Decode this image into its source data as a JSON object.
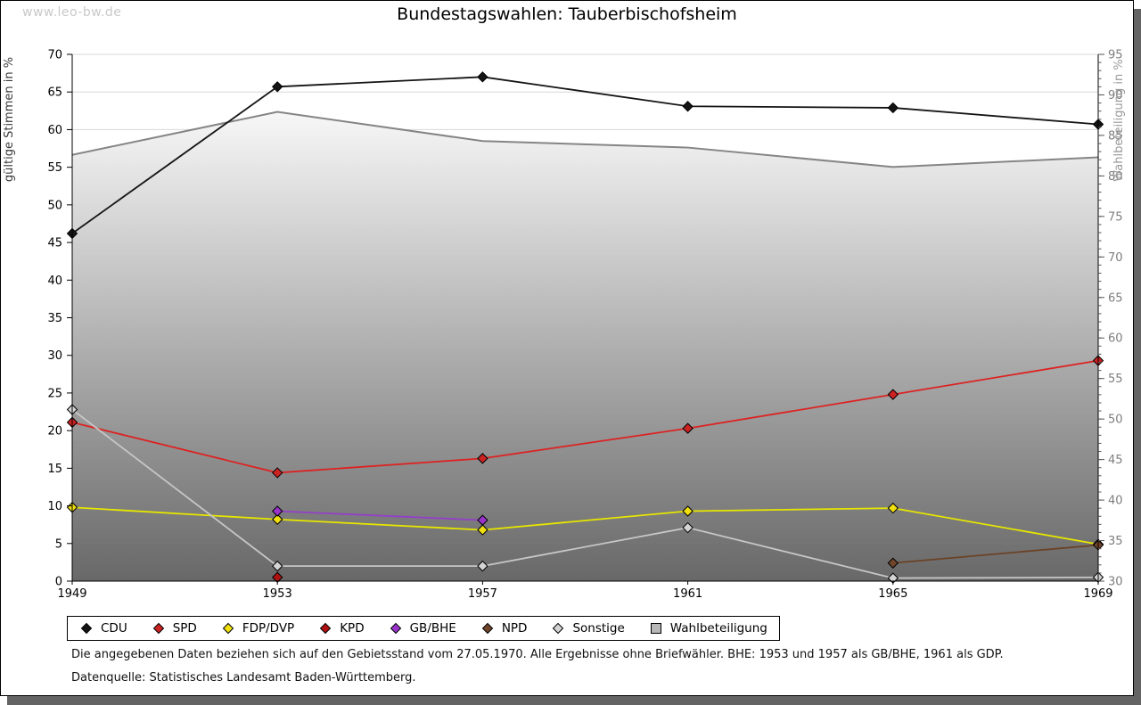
{
  "watermark": "www.leo-bw.de",
  "title": "Bundestagswahlen: Tauberbischofsheim",
  "footnotes": [
    "Die angegebenen Daten beziehen sich auf den Gebietsstand vom 27.05.1970. Alle Ergebnisse ohne Briefwähler. BHE: 1953 und 1957 als GB/BHE, 1961 als GDP.",
    "Datenquelle: Statistisches Landesamt Baden-Württemberg."
  ],
  "chart_data": {
    "type": "line",
    "x": [
      1949,
      1953,
      1957,
      1961,
      1965,
      1969
    ],
    "left_axis": {
      "label": "gültige Stimmen in %",
      "min": 0,
      "max": 70,
      "ticks": [
        0,
        5,
        10,
        15,
        20,
        25,
        30,
        35,
        40,
        45,
        50,
        55,
        60,
        65,
        70
      ]
    },
    "right_axis": {
      "label": "Wahlbeteiligung in %",
      "min": 30,
      "max": 95,
      "ticks": [
        30,
        35,
        40,
        45,
        50,
        55,
        60,
        65,
        70,
        75,
        80,
        85,
        90,
        95
      ],
      "minor_tick_step": 1
    },
    "grid": "horizontal",
    "legend_position": "bottom",
    "series": [
      {
        "name": "CDU",
        "axis": "left",
        "marker": "diamond",
        "color": "#141414",
        "marker_fill": "#141414",
        "values": [
          46.2,
          65.7,
          67.0,
          63.1,
          62.9,
          60.7
        ]
      },
      {
        "name": "SPD",
        "axis": "left",
        "marker": "diamond",
        "color": "#dd2222",
        "marker_fill": "#cc2222",
        "values": [
          21.1,
          14.4,
          16.3,
          20.3,
          24.8,
          29.3
        ]
      },
      {
        "name": "FDP/DVP",
        "axis": "left",
        "marker": "diamond",
        "color": "#e6e600",
        "marker_fill": "#f0e010",
        "values": [
          9.8,
          8.2,
          6.8,
          9.3,
          9.7,
          4.9
        ]
      },
      {
        "name": "KPD",
        "axis": "left",
        "marker": "diamond",
        "color": "#a50d0d",
        "marker_fill": "#b01111",
        "values": [
          null,
          0.5,
          null,
          null,
          null,
          null
        ]
      },
      {
        "name": "GB/BHE",
        "axis": "left",
        "marker": "diamond",
        "color": "#9340c8",
        "marker_fill": "#9933cc",
        "values": [
          null,
          9.3,
          8.1,
          null,
          null,
          null
        ]
      },
      {
        "name": "NPD",
        "axis": "left",
        "marker": "diamond",
        "color": "#6b4226",
        "marker_fill": "#70452a",
        "values": [
          null,
          null,
          null,
          null,
          2.4,
          4.8
        ]
      },
      {
        "name": "Sonstige",
        "axis": "left",
        "marker": "diamond",
        "color": "#c6c6c6",
        "marker_fill": "#d4d4d4",
        "values": [
          22.8,
          2.0,
          2.0,
          7.1,
          0.4,
          0.5
        ]
      },
      {
        "name": "Wahlbeteiligung",
        "axis": "right",
        "marker": "square",
        "type": "area",
        "color": "#858585",
        "marker_fill": "#b8b8b8",
        "area_top_color": "#f7f7f7",
        "area_bottom_color": "#686868",
        "values": [
          82.6,
          87.9,
          84.3,
          83.5,
          81.1,
          82.3
        ]
      }
    ],
    "colors": {
      "gridline": "#d8d8d8",
      "axis": "#000000",
      "right_axis_text": "#7d7d7d",
      "right_axis_title": "#9a9a9a",
      "left_axis_title": "#3a3a3a"
    }
  }
}
